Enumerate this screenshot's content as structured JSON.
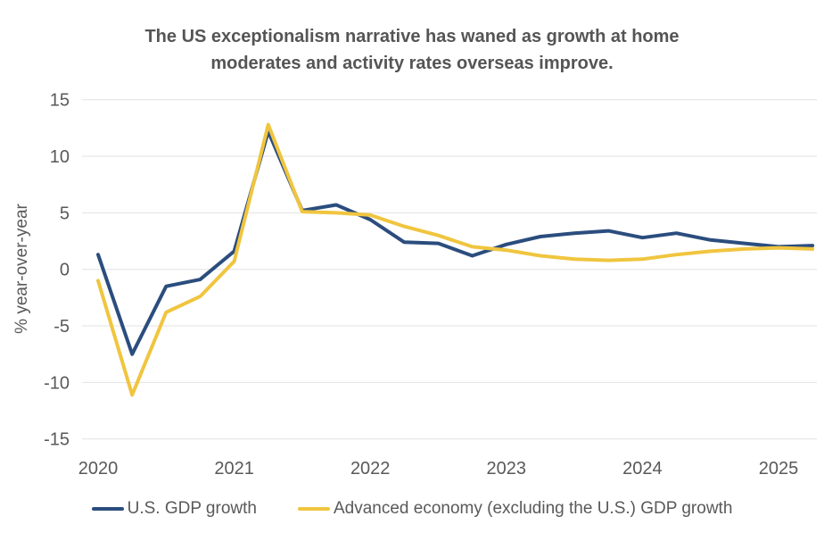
{
  "chart_data": {
    "type": "line",
    "title": "The US exceptionalism narrative has waned as growth at home moderates and activity rates overseas improve.",
    "ylabel": "% year-over-year",
    "ylim": [
      -15,
      15
    ],
    "yticks": [
      15,
      10,
      5,
      0,
      -5,
      -10,
      -15
    ],
    "x_tick_labels": [
      "2020",
      "2021",
      "2022",
      "2023",
      "2024",
      "2025"
    ],
    "x": [
      "2020 Q1",
      "2020 Q2",
      "2020 Q3",
      "2020 Q4",
      "2021 Q1",
      "2021 Q2",
      "2021 Q3",
      "2021 Q4",
      "2022 Q1",
      "2022 Q2",
      "2022 Q3",
      "2022 Q4",
      "2023 Q1",
      "2023 Q2",
      "2023 Q3",
      "2023 Q4",
      "2024 Q1",
      "2024 Q2",
      "2024 Q3",
      "2024 Q4",
      "2025 Q1",
      "2025 Q2"
    ],
    "series": [
      {
        "name": "U.S. GDP growth",
        "color": "#2b4d7e",
        "values": [
          1.3,
          -7.5,
          -1.5,
          -0.9,
          1.6,
          12.2,
          5.2,
          5.7,
          4.4,
          2.4,
          2.3,
          1.2,
          2.2,
          2.9,
          3.2,
          3.4,
          2.8,
          3.2,
          2.6,
          2.3,
          2.0,
          2.1
        ]
      },
      {
        "name": "Advanced economy (excluding the U.S.) GDP growth",
        "color": "#f0c53f",
        "values": [
          -1.0,
          -11.1,
          -3.8,
          -2.4,
          0.7,
          12.8,
          5.1,
          5.0,
          4.8,
          3.8,
          3.0,
          2.0,
          1.7,
          1.2,
          0.9,
          0.8,
          0.9,
          1.3,
          1.6,
          1.8,
          1.9,
          1.8
        ]
      }
    ],
    "grid": "horizontal",
    "grid_color": "#e2e2e2",
    "text_color": "#595959",
    "legend_position": "bottom"
  }
}
